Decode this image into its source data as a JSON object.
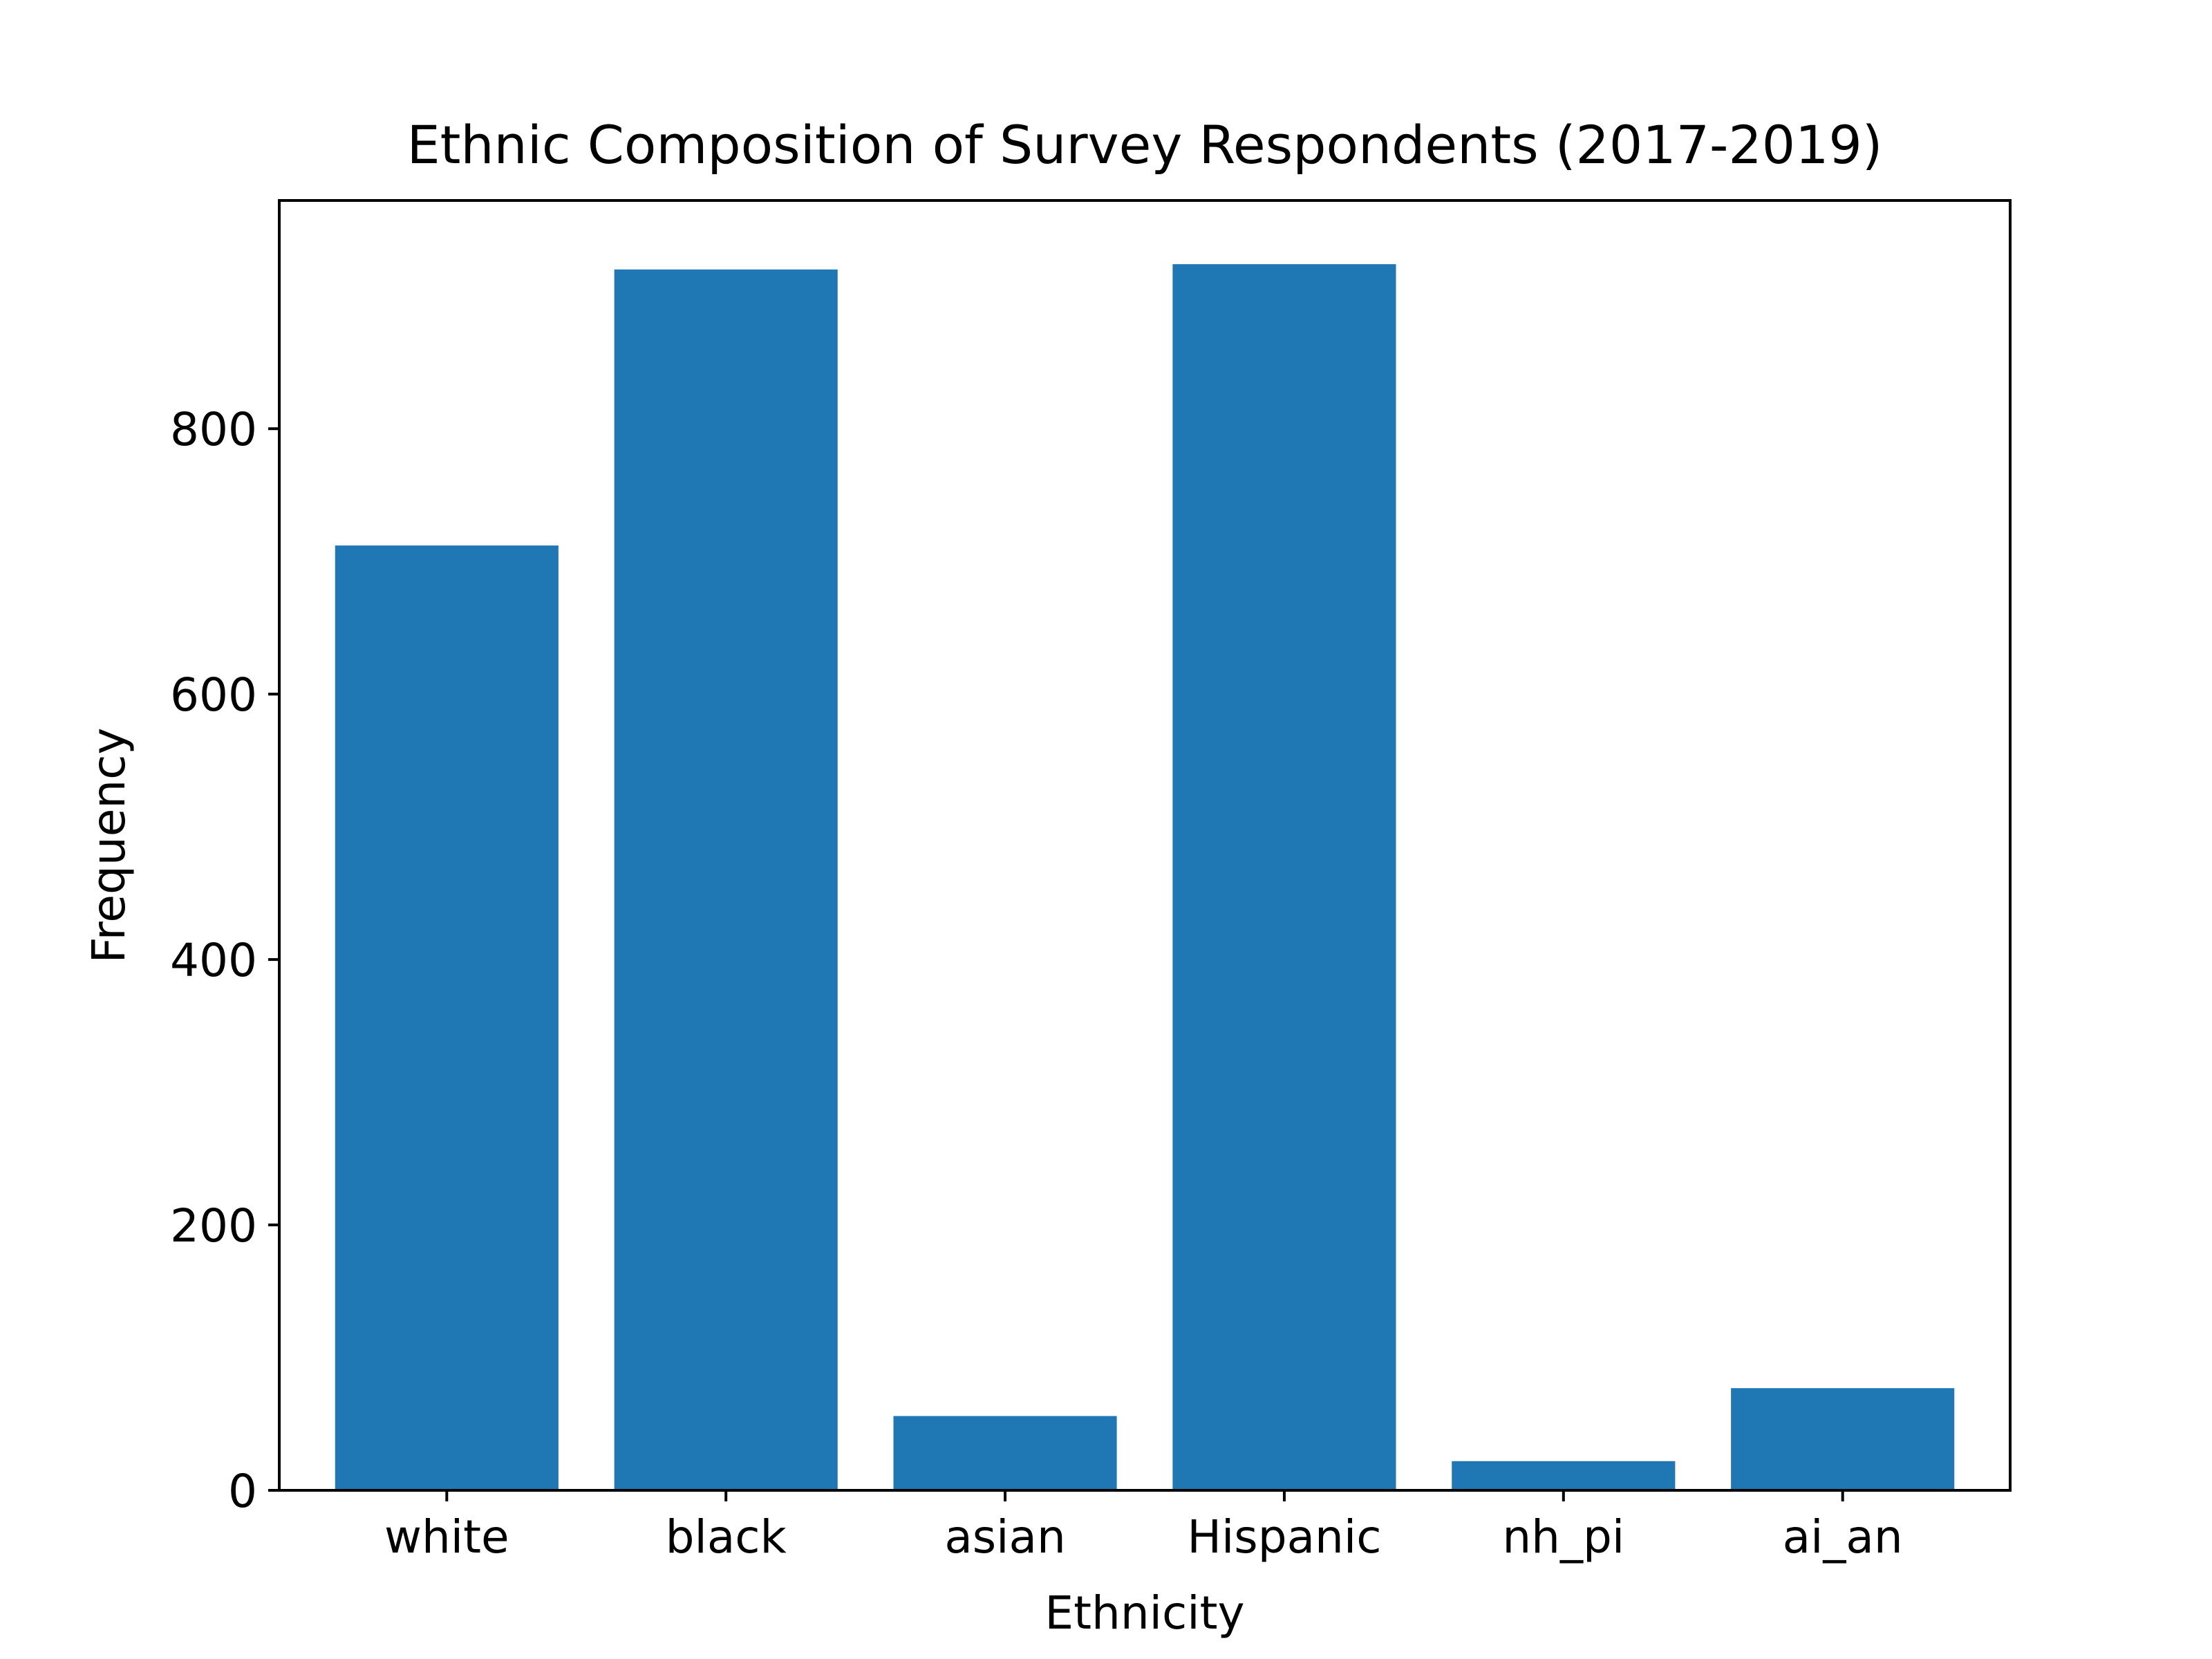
{
  "chart_data": {
    "type": "bar",
    "title": "Ethnic Composition of Survey Respondents (2017-2019)",
    "xlabel": "Ethnicity",
    "ylabel": "Frequency",
    "categories": [
      "white",
      "black",
      "asian",
      "Hispanic",
      "nh_pi",
      "ai_an"
    ],
    "values": [
      712,
      920,
      56,
      924,
      22,
      77
    ],
    "ylim": [
      0,
      972
    ],
    "yticks": [
      0,
      200,
      400,
      600,
      800
    ],
    "grid": false,
    "legend": "none",
    "bar_color": "#1f77b4"
  }
}
